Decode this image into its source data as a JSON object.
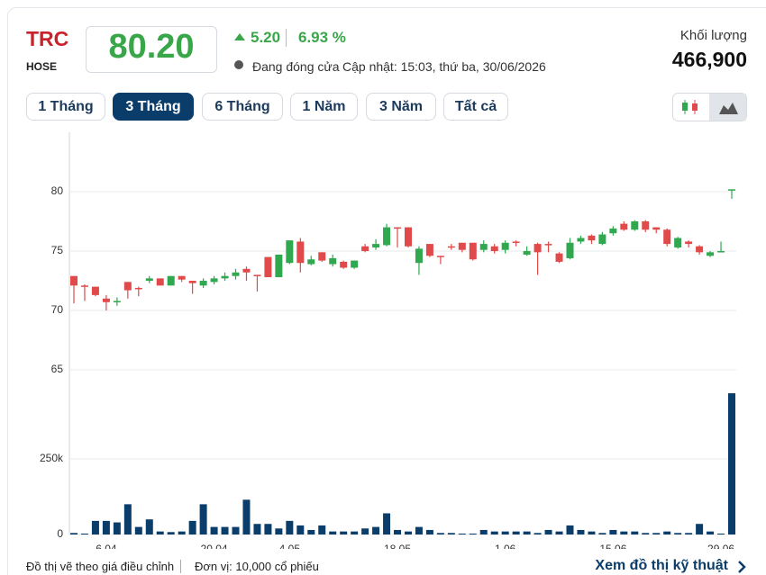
{
  "header": {
    "symbol": "TRC",
    "exchange": "HOSE",
    "price": "80.20",
    "change": "5.20",
    "change_pct": "6.93 %",
    "status": "Đang đóng cửa",
    "updated": "Cập nhật: 15:03, thứ ba, 30/06/2026",
    "volume_label": "Khối lượng",
    "volume": "466,900"
  },
  "ranges": [
    "1 Tháng",
    "3 Tháng",
    "6 Tháng",
    "1 Năm",
    "3 Năm",
    "Tất cả"
  ],
  "chart_data": [
    {
      "type": "candlestick",
      "categories": [
        null,
        null,
        null,
        "6.04",
        null,
        null,
        null,
        null,
        null,
        null,
        null,
        null,
        null,
        "20.04",
        null,
        null,
        null,
        null,
        null,
        null,
        "4.05",
        null,
        null,
        null,
        null,
        null,
        null,
        null,
        null,
        null,
        "18.05",
        null,
        null,
        null,
        null,
        null,
        null,
        null,
        null,
        null,
        "1.06",
        null,
        null,
        null,
        null,
        null,
        null,
        null,
        null,
        null,
        "15.06",
        null,
        null,
        null,
        null,
        null,
        null,
        null,
        null,
        null,
        "29.06",
        null
      ],
      "open": [
        72.9,
        72.1,
        72.0,
        71.0,
        70.7,
        72.4,
        71.9,
        72.5,
        72.7,
        72.1,
        72.9,
        72.5,
        72.1,
        72.4,
        72.7,
        72.9,
        73.5,
        73.0,
        74.5,
        72.8,
        74.0,
        75.8,
        73.9,
        74.9,
        73.9,
        74.1,
        73.6,
        75.4,
        75.3,
        75.5,
        77.0,
        77.0,
        74.0,
        75.6,
        74.6,
        75.4,
        75.7,
        75.7,
        75.1,
        75.4,
        75.1,
        75.8,
        74.7,
        75.6,
        75.6,
        74.8,
        74.4,
        75.8,
        76.3,
        75.6,
        76.5,
        77.3,
        76.8,
        77.5,
        77.0,
        76.8,
        75.3,
        75.8,
        75.4,
        74.6,
        75.0,
        80.2
      ],
      "high": [
        72.9,
        72.2,
        72.0,
        71.3,
        71.1,
        72.4,
        72.0,
        72.9,
        72.7,
        72.9,
        72.9,
        72.5,
        72.7,
        72.9,
        73.2,
        73.5,
        73.7,
        73.0,
        74.5,
        74.7,
        75.9,
        76.1,
        74.6,
        74.9,
        74.7,
        74.2,
        74.2,
        75.6,
        76.0,
        77.3,
        77.0,
        77.0,
        75.4,
        75.6,
        74.6,
        75.6,
        75.7,
        75.7,
        75.9,
        75.6,
        75.9,
        75.9,
        75.4,
        75.7,
        75.8,
        74.9,
        76.1,
        76.3,
        76.4,
        76.6,
        77.1,
        77.5,
        77.6,
        77.6,
        77.0,
        76.9,
        76.2,
        75.9,
        75.5,
        75.0,
        75.8,
        80.2
      ],
      "low": [
        70.6,
        70.8,
        71.2,
        70.0,
        70.4,
        71.0,
        71.2,
        72.3,
        72.1,
        72.1,
        72.4,
        71.4,
        71.9,
        72.2,
        72.5,
        72.6,
        72.5,
        71.6,
        72.8,
        72.8,
        73.9,
        73.2,
        73.8,
        74.1,
        73.7,
        73.5,
        73.5,
        74.9,
        75.1,
        75.4,
        75.3,
        75.3,
        73.0,
        74.5,
        73.9,
        75.1,
        74.9,
        74.2,
        74.9,
        74.8,
        74.8,
        75.4,
        74.6,
        73.0,
        74.9,
        74.0,
        74.3,
        75.6,
        75.6,
        75.5,
        76.3,
        76.7,
        76.7,
        76.6,
        76.5,
        75.4,
        75.2,
        75.3,
        74.7,
        74.5,
        74.9,
        79.4
      ],
      "close": [
        72.1,
        72.0,
        71.3,
        70.7,
        70.8,
        71.7,
        71.8,
        72.7,
        72.1,
        72.9,
        72.6,
        72.3,
        72.5,
        72.7,
        72.9,
        73.2,
        73.2,
        72.9,
        72.8,
        74.7,
        75.9,
        74.0,
        74.3,
        74.2,
        74.4,
        73.6,
        74.2,
        75.0,
        75.6,
        77.0,
        76.9,
        75.4,
        75.2,
        74.6,
        74.5,
        75.3,
        75.1,
        74.3,
        75.6,
        75.0,
        75.7,
        75.7,
        75.0,
        74.9,
        75.5,
        74.1,
        75.7,
        76.1,
        75.9,
        76.4,
        76.9,
        76.8,
        77.5,
        76.8,
        76.8,
        75.6,
        76.1,
        75.6,
        74.9,
        74.9,
        75.0,
        80.2
      ],
      "up_color": "#2fa84f",
      "down_color": "#e04a4a",
      "ylim": [
        64.7,
        85
      ],
      "yticks": [
        65,
        70,
        75,
        80
      ],
      "grid": true
    },
    {
      "type": "bar",
      "values": [
        5000,
        3000,
        45000,
        45000,
        40000,
        100000,
        25000,
        50000,
        10000,
        8000,
        10000,
        45000,
        100000,
        25000,
        25000,
        25000,
        115000,
        35000,
        35000,
        20000,
        45000,
        30000,
        15000,
        30000,
        10000,
        10000,
        10000,
        20000,
        25000,
        70000,
        15000,
        10000,
        25000,
        15000,
        5000,
        5000,
        3000,
        3000,
        15000,
        10000,
        10000,
        10000,
        10000,
        5000,
        15000,
        10000,
        30000,
        15000,
        10000,
        5000,
        15000,
        10000,
        10000,
        5000,
        5000,
        10000,
        5000,
        5000,
        35000,
        10000,
        3000,
        466900
      ],
      "color": "#0b3d6b",
      "ylim": [
        0,
        467000
      ],
      "yticks": [
        0,
        {
          "value": 250000,
          "label": "250k"
        }
      ],
      "grid": true
    }
  ],
  "footer": {
    "note": "Đồ thị vẽ theo giá điều chỉnh",
    "unit": "Đơn vị: 10,000 cổ phiếu",
    "link": "Xem đồ thị kỹ thuật"
  }
}
